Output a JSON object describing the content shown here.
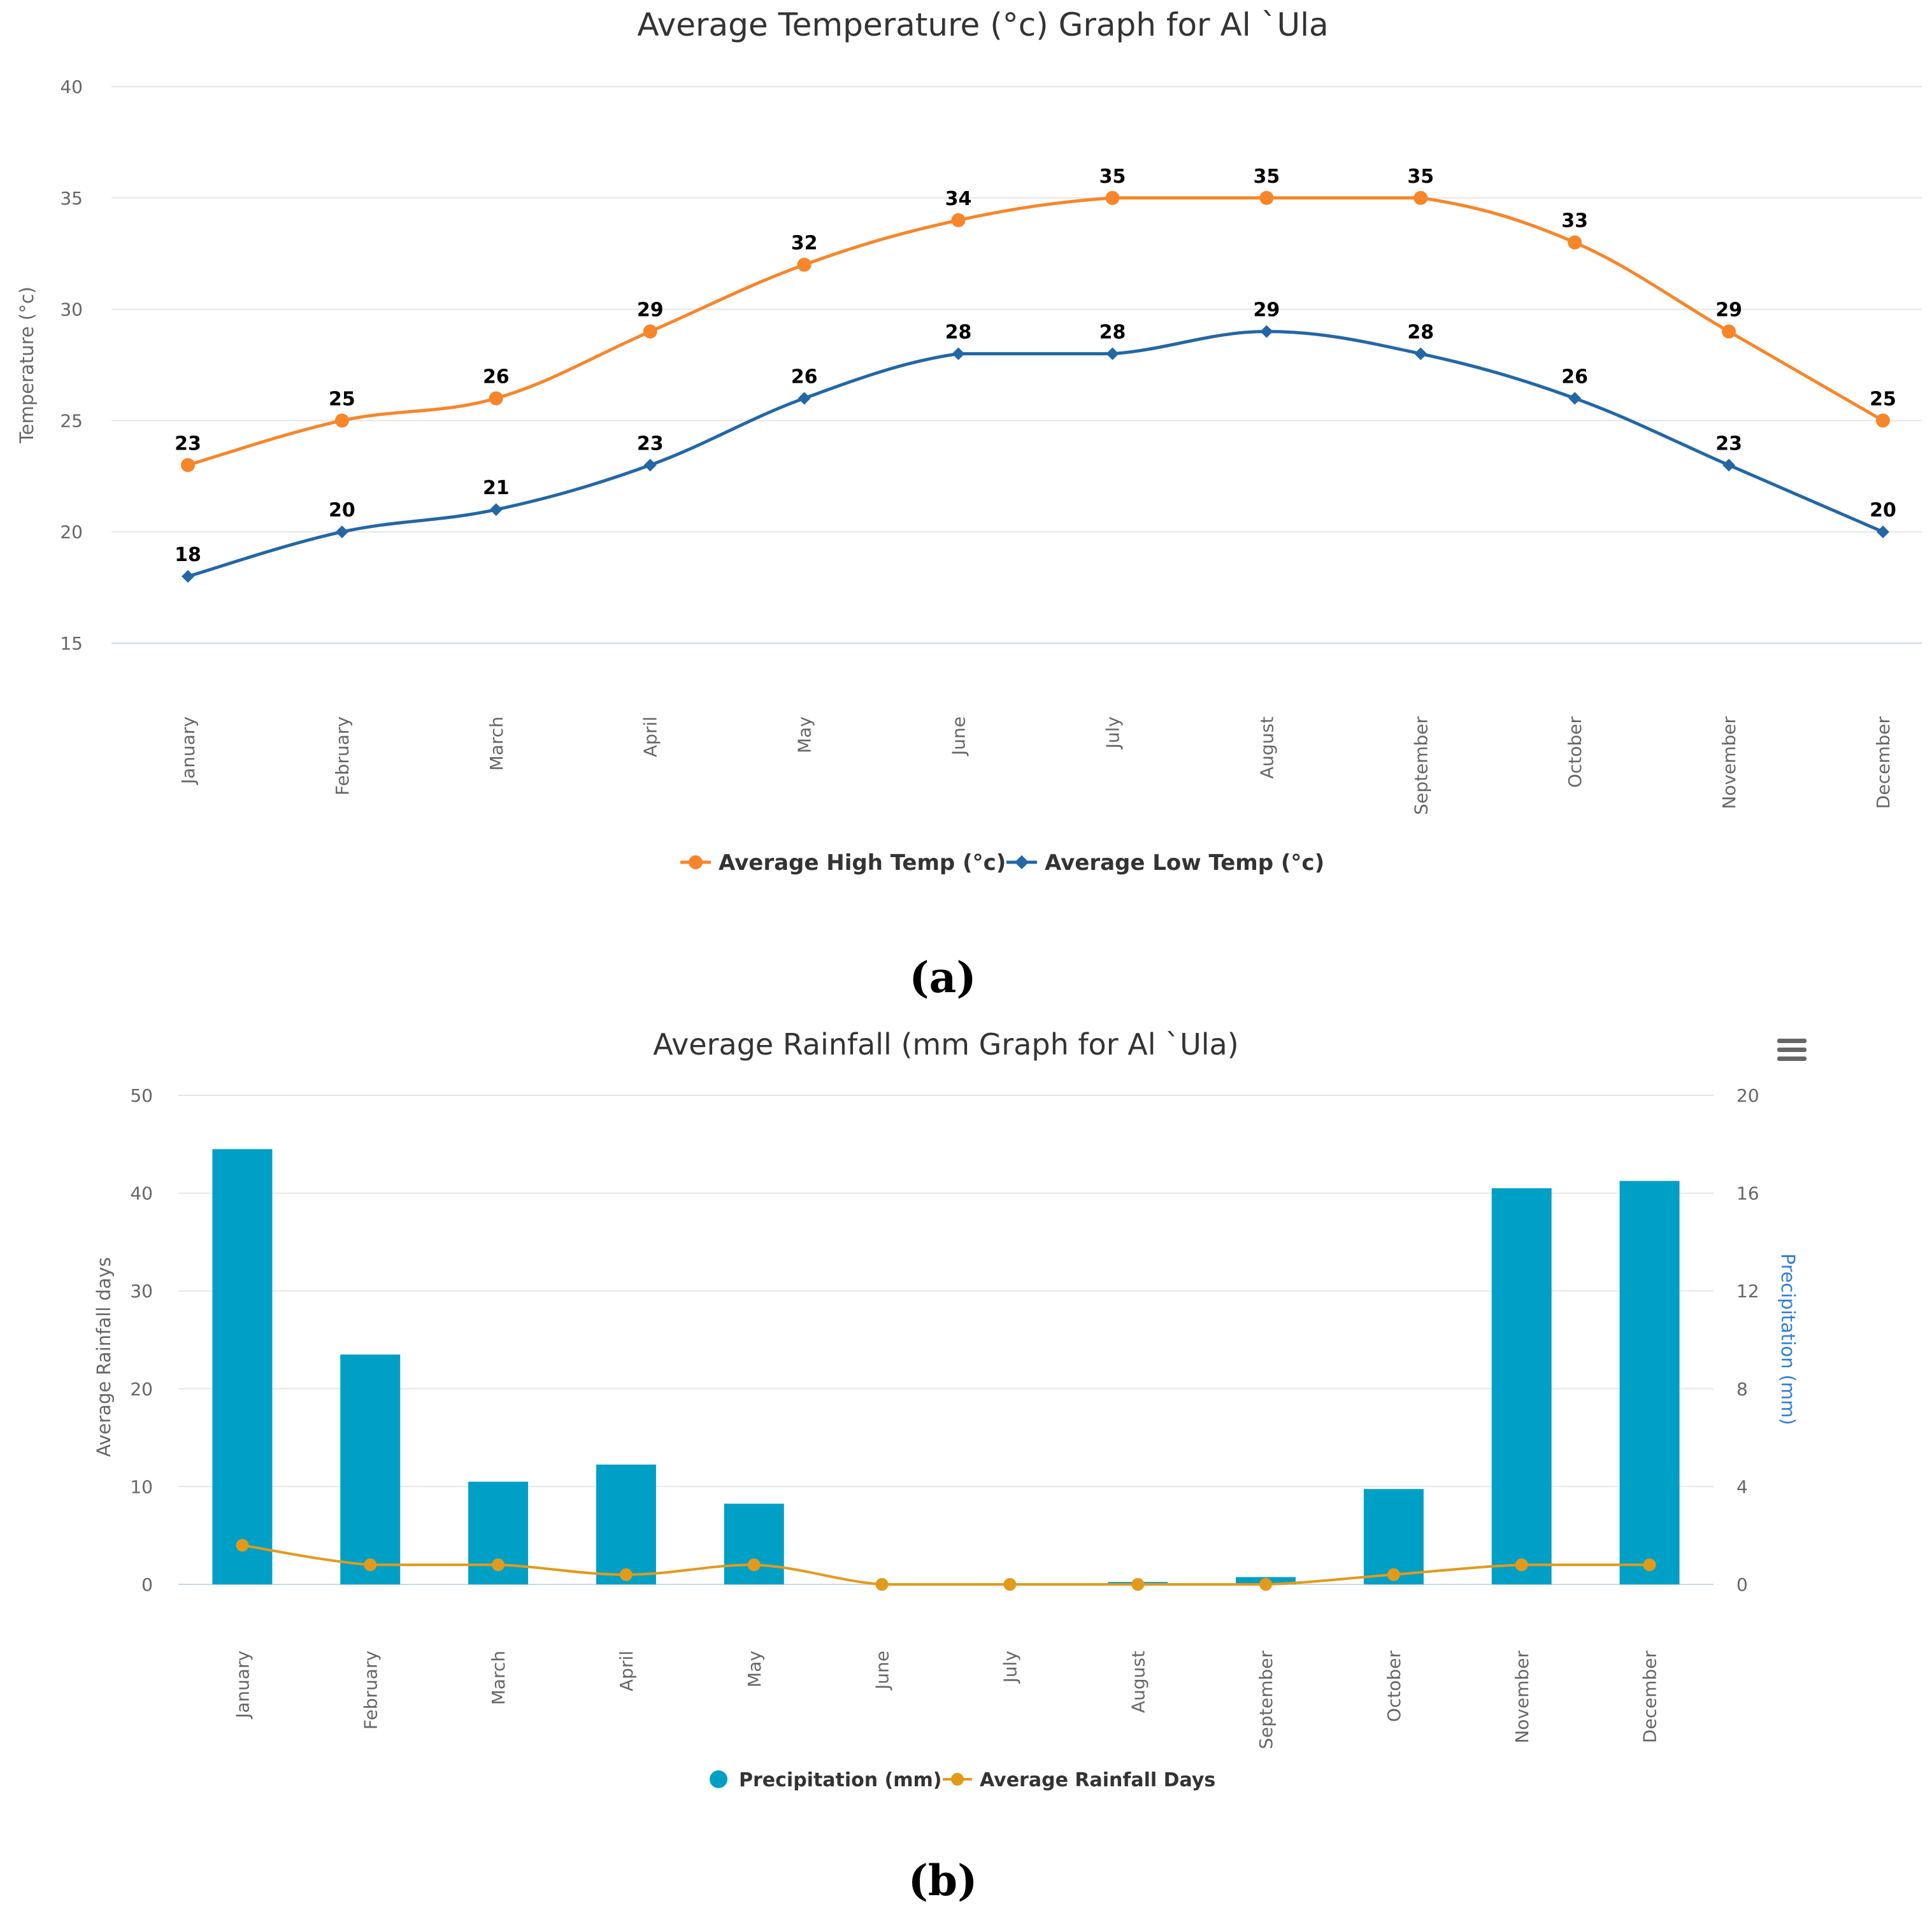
{
  "chart_data": [
    {
      "type": "line",
      "title": "Average Temperature (°c) Graph for Al `Ula",
      "ylabel": "Temperature (°c)",
      "xlabel": "",
      "ylim": [
        15,
        40
      ],
      "yticks": [
        15,
        20,
        25,
        30,
        35,
        40
      ],
      "categories": [
        "January",
        "February",
        "March",
        "April",
        "May",
        "June",
        "July",
        "August",
        "September",
        "October",
        "November",
        "December"
      ],
      "series": [
        {
          "name": "Average High Temp (°c)",
          "color": "#f7862a",
          "marker": "circle",
          "values": [
            23,
            25,
            26,
            29,
            32,
            34,
            35,
            35,
            35,
            33,
            29,
            25
          ]
        },
        {
          "name": "Average Low Temp (°c)",
          "color": "#2367a6",
          "marker": "diamond",
          "values": [
            18,
            20,
            21,
            23,
            26,
            28,
            28,
            29,
            28,
            26,
            23,
            20
          ]
        }
      ],
      "legend": "bottom-center",
      "caption": "(a)"
    },
    {
      "type": "bar",
      "title": "Average Rainfall (mm Graph for Al `Ula)",
      "ylabel_left": "Average Rainfall days",
      "ylabel_right": "Precipitation (mm)",
      "ylim_left": [
        0,
        50
      ],
      "yticks_left": [
        0,
        10,
        20,
        30,
        40,
        50
      ],
      "ylim_right": [
        0,
        20
      ],
      "yticks_right": [
        0,
        4,
        8,
        12,
        16,
        20
      ],
      "categories": [
        "January",
        "February",
        "March",
        "April",
        "May",
        "June",
        "July",
        "August",
        "September",
        "October",
        "November",
        "December"
      ],
      "series": [
        {
          "name": "Precipitation (mm)",
          "type": "bar",
          "axis": "right",
          "color": "#00a0c6",
          "values": [
            17.8,
            9.4,
            4.2,
            4.9,
            3.3,
            0,
            0,
            0.1,
            0.3,
            3.9,
            16.2,
            16.5
          ]
        },
        {
          "name": "Average Rainfall Days",
          "type": "line",
          "axis": "left",
          "color": "#e29a1c",
          "values": [
            4,
            2,
            2,
            1,
            2,
            0,
            0,
            0,
            0,
            1,
            2,
            2
          ]
        }
      ],
      "legend": "bottom-center",
      "caption": "(b)"
    }
  ],
  "menu_icon": "hamburger-menu-icon"
}
